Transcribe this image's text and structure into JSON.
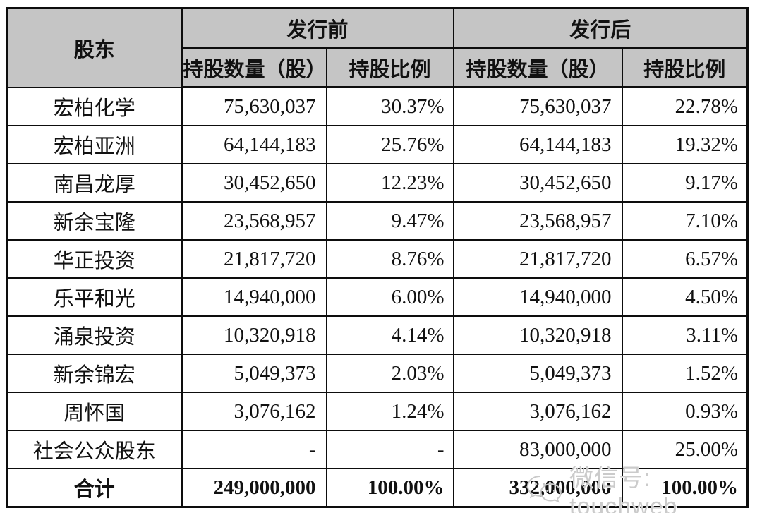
{
  "table": {
    "header": {
      "shareholder": "股东",
      "pre_issue": "发行前",
      "post_issue": "发行后",
      "pre_shares_label": "持股数量（股）",
      "pre_ratio_label": "持股比例",
      "post_shares_label": "持股数量（股）",
      "post_ratio_label": "持股比例"
    },
    "rows": [
      {
        "name": "宏柏化学",
        "pre_shares": "75,630,037",
        "pre_ratio": "30.37%",
        "post_shares": "75,630,037",
        "post_ratio": "22.78%",
        "is_total": false
      },
      {
        "name": "宏柏亚洲",
        "pre_shares": "64,144,183",
        "pre_ratio": "25.76%",
        "post_shares": "64,144,183",
        "post_ratio": "19.32%",
        "is_total": false
      },
      {
        "name": "南昌龙厚",
        "pre_shares": "30,452,650",
        "pre_ratio": "12.23%",
        "post_shares": "30,452,650",
        "post_ratio": "9.17%",
        "is_total": false
      },
      {
        "name": "新余宝隆",
        "pre_shares": "23,568,957",
        "pre_ratio": "9.47%",
        "post_shares": "23,568,957",
        "post_ratio": "7.10%",
        "is_total": false
      },
      {
        "name": "华正投资",
        "pre_shares": "21,817,720",
        "pre_ratio": "8.76%",
        "post_shares": "21,817,720",
        "post_ratio": "6.57%",
        "is_total": false
      },
      {
        "name": "乐平和光",
        "pre_shares": "14,940,000",
        "pre_ratio": "6.00%",
        "post_shares": "14,940,000",
        "post_ratio": "4.50%",
        "is_total": false
      },
      {
        "name": "涌泉投资",
        "pre_shares": "10,320,918",
        "pre_ratio": "4.14%",
        "post_shares": "10,320,918",
        "post_ratio": "3.11%",
        "is_total": false
      },
      {
        "name": "新余锦宏",
        "pre_shares": "5,049,373",
        "pre_ratio": "2.03%",
        "post_shares": "5,049,373",
        "post_ratio": "1.52%",
        "is_total": false
      },
      {
        "name": "周怀国",
        "pre_shares": "3,076,162",
        "pre_ratio": "1.24%",
        "post_shares": "3,076,162",
        "post_ratio": "0.93%",
        "is_total": false
      },
      {
        "name": "社会公众股东",
        "pre_shares": "-",
        "pre_ratio": "-",
        "post_shares": "83,000,000",
        "post_ratio": "25.00%",
        "is_total": false
      },
      {
        "name": "合计",
        "pre_shares": "249,000,000",
        "pre_ratio": "100.00%",
        "post_shares": "332,000,000",
        "post_ratio": "100.00%",
        "is_total": true
      }
    ]
  },
  "watermark": {
    "icon": "wechat-icon",
    "text": "微信号: touchweb"
  },
  "colors": {
    "header_bg": "#c5c5c5",
    "border": "#0d0d0d",
    "watermark": "#cbcbcb"
  }
}
